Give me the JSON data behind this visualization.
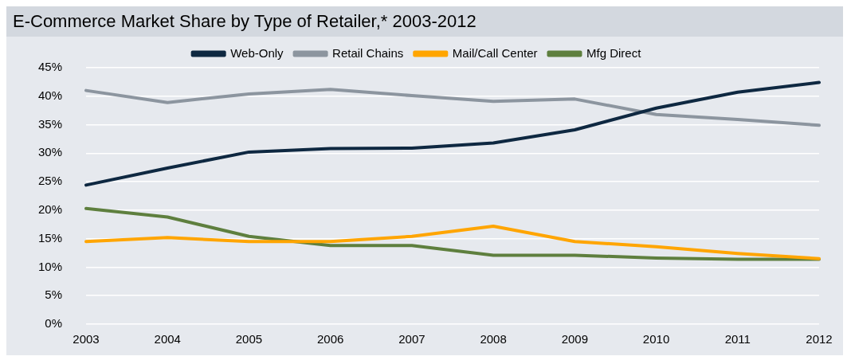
{
  "chart_data": {
    "type": "line",
    "title": "E-Commerce Market Share by Type of Retailer,* 2003-2012",
    "categories": [
      "2003",
      "2004",
      "2005",
      "2006",
      "2007",
      "2008",
      "2009",
      "2010",
      "2011",
      "2012"
    ],
    "series": [
      {
        "name": "Web-Only",
        "color": "#0e2841",
        "values": [
          24.4,
          27.4,
          30.2,
          30.8,
          30.9,
          31.8,
          34.1,
          37.9,
          40.7,
          42.4
        ]
      },
      {
        "name": "Retail Chains",
        "color": "#8c959f",
        "values": [
          41.0,
          38.9,
          40.4,
          41.2,
          40.1,
          39.1,
          39.5,
          36.8,
          35.9,
          34.9
        ]
      },
      {
        "name": "Mail/Call Center",
        "color": "#ffa500",
        "values": [
          14.5,
          15.2,
          14.5,
          14.5,
          15.4,
          17.2,
          14.5,
          13.6,
          12.4,
          11.5
        ]
      },
      {
        "name": "Mfg Direct",
        "color": "#5e7f3e",
        "values": [
          20.3,
          18.8,
          15.4,
          13.8,
          13.8,
          12.1,
          12.1,
          11.6,
          11.4,
          11.4
        ]
      }
    ],
    "ylim": [
      0,
      45
    ],
    "yticks": [
      {
        "value": 0,
        "label": "0%"
      },
      {
        "value": 5,
        "label": "5%"
      },
      {
        "value": 10,
        "label": "10%"
      },
      {
        "value": 15,
        "label": "15%"
      },
      {
        "value": 20,
        "label": "20%"
      },
      {
        "value": 25,
        "label": "25%"
      },
      {
        "value": 30,
        "label": "30%"
      },
      {
        "value": 35,
        "label": "35%"
      },
      {
        "value": 40,
        "label": "40%"
      },
      {
        "value": 45,
        "label": "45%"
      }
    ],
    "grid": "y",
    "legend": "top",
    "marker": "none",
    "line_style": "solid"
  }
}
